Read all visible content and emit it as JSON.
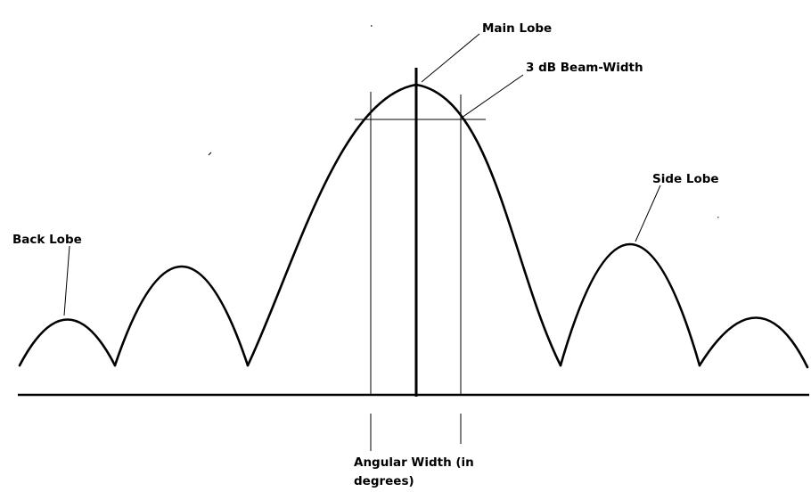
{
  "labels": {
    "main_lobe": "Main Lobe",
    "beam_width": "3 dB Beam-Width",
    "side_lobe": "Side Lobe",
    "back_lobe": "Back Lobe",
    "angular_width_line1": "Angular Width (in",
    "angular_width_line2": "degrees)"
  }
}
